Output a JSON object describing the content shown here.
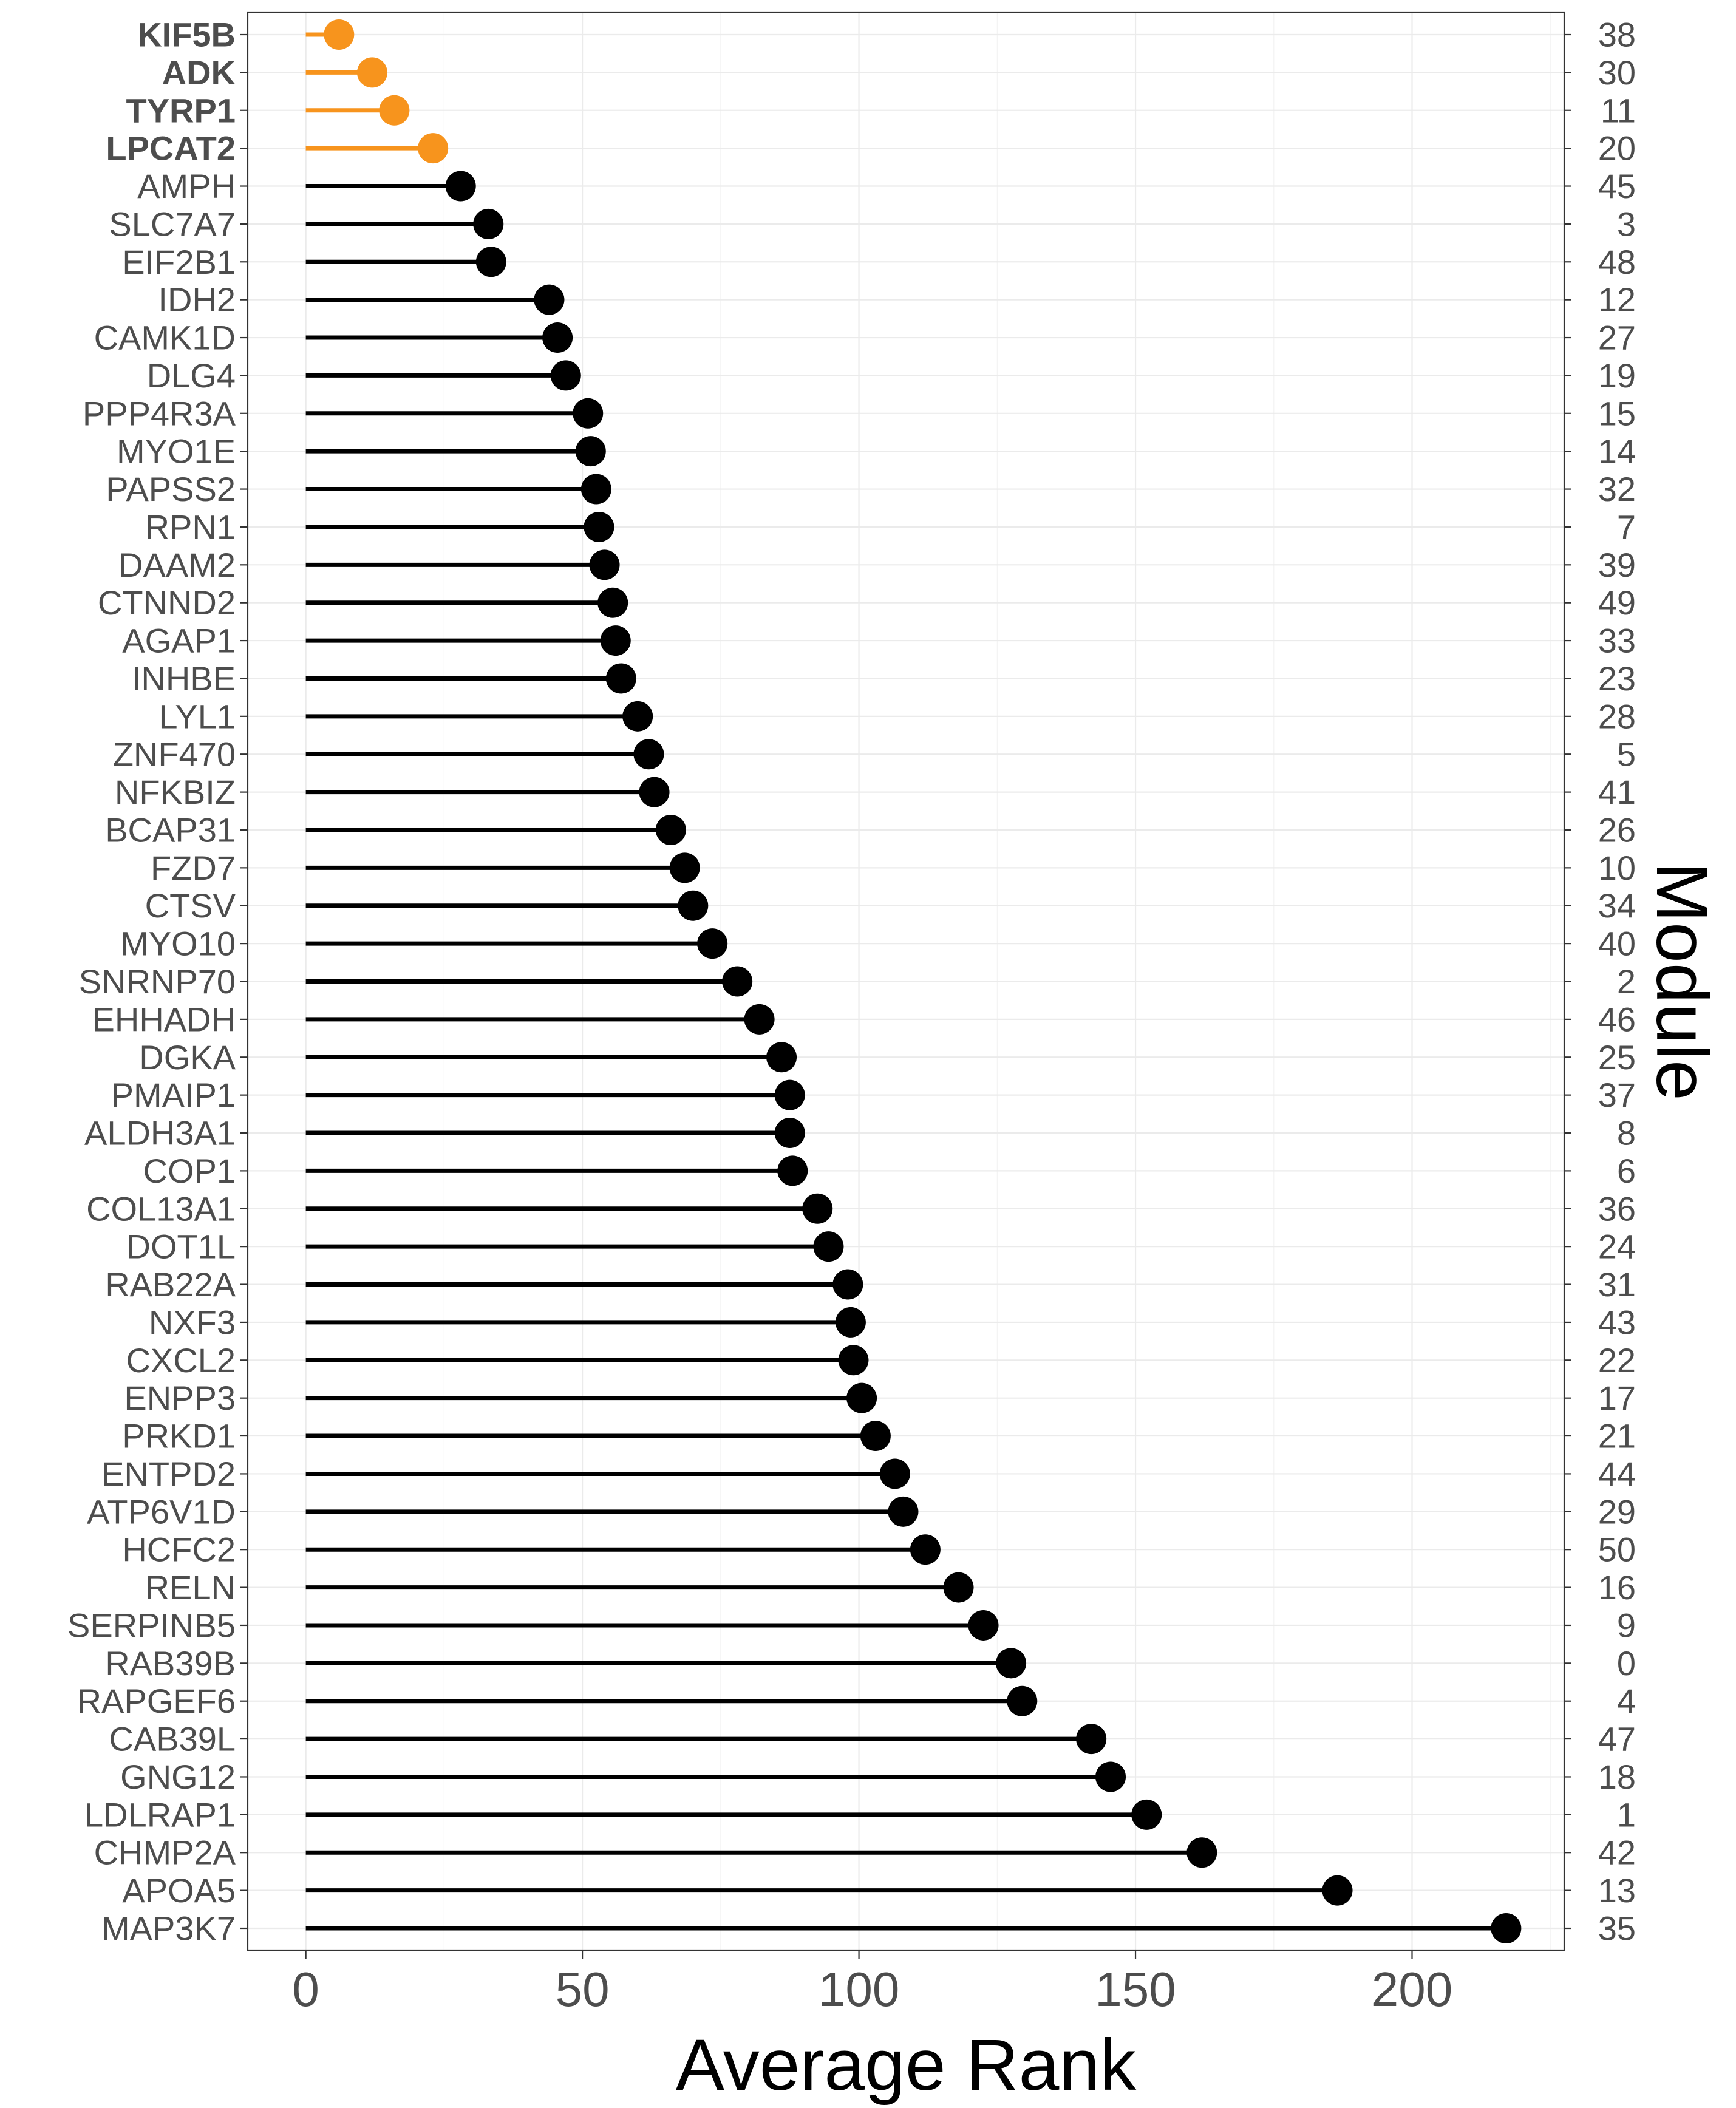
{
  "chart_data": {
    "type": "lollipop",
    "xlabel": "Average Rank",
    "ylabel_right": "Module",
    "xlim": [
      -10.5,
      227.5
    ],
    "xticks": [
      0,
      50,
      100,
      150,
      200
    ],
    "grid": true,
    "colors": {
      "highlight": "#f7941d",
      "default": "#000000"
    },
    "rows": [
      {
        "gene": "KIF5B",
        "module": "38",
        "rank": 6,
        "highlight": true
      },
      {
        "gene": "ADK",
        "module": "30",
        "rank": 12,
        "highlight": true
      },
      {
        "gene": "TYRP1",
        "module": "11",
        "rank": 16,
        "highlight": true
      },
      {
        "gene": "LPCAT2",
        "module": "20",
        "rank": 23,
        "highlight": true
      },
      {
        "gene": "AMPH",
        "module": "45",
        "rank": 28,
        "highlight": false
      },
      {
        "gene": "SLC7A7",
        "module": "3",
        "rank": 33,
        "highlight": false
      },
      {
        "gene": "EIF2B1",
        "module": "48",
        "rank": 33.5,
        "highlight": false
      },
      {
        "gene": "IDH2",
        "module": "12",
        "rank": 44,
        "highlight": false
      },
      {
        "gene": "CAMK1D",
        "module": "27",
        "rank": 45.5,
        "highlight": false
      },
      {
        "gene": "DLG4",
        "module": "19",
        "rank": 47,
        "highlight": false
      },
      {
        "gene": "PPP4R3A",
        "module": "15",
        "rank": 51,
        "highlight": false
      },
      {
        "gene": "MYO1E",
        "module": "14",
        "rank": 51.5,
        "highlight": false
      },
      {
        "gene": "PAPSS2",
        "module": "32",
        "rank": 52.5,
        "highlight": false
      },
      {
        "gene": "RPN1",
        "module": "7",
        "rank": 53,
        "highlight": false
      },
      {
        "gene": "DAAM2",
        "module": "39",
        "rank": 54,
        "highlight": false
      },
      {
        "gene": "CTNND2",
        "module": "49",
        "rank": 55.5,
        "highlight": false
      },
      {
        "gene": "AGAP1",
        "module": "33",
        "rank": 56,
        "highlight": false
      },
      {
        "gene": "INHBE",
        "module": "23",
        "rank": 57,
        "highlight": false
      },
      {
        "gene": "LYL1",
        "module": "28",
        "rank": 60,
        "highlight": false
      },
      {
        "gene": "ZNF470",
        "module": "5",
        "rank": 62,
        "highlight": false
      },
      {
        "gene": "NFKBIZ",
        "module": "41",
        "rank": 63,
        "highlight": false
      },
      {
        "gene": "BCAP31",
        "module": "26",
        "rank": 66,
        "highlight": false
      },
      {
        "gene": "FZD7",
        "module": "10",
        "rank": 68.5,
        "highlight": false
      },
      {
        "gene": "CTSV",
        "module": "34",
        "rank": 70,
        "highlight": false
      },
      {
        "gene": "MYO10",
        "module": "40",
        "rank": 73.5,
        "highlight": false
      },
      {
        "gene": "SNRNP70",
        "module": "2",
        "rank": 78,
        "highlight": false
      },
      {
        "gene": "EHHADH",
        "module": "46",
        "rank": 82,
        "highlight": false
      },
      {
        "gene": "DGKA",
        "module": "25",
        "rank": 86,
        "highlight": false
      },
      {
        "gene": "PMAIP1",
        "module": "37",
        "rank": 87.5,
        "highlight": false
      },
      {
        "gene": "ALDH3A1",
        "module": "8",
        "rank": 87.5,
        "highlight": false
      },
      {
        "gene": "COP1",
        "module": "6",
        "rank": 88,
        "highlight": false
      },
      {
        "gene": "COL13A1",
        "module": "36",
        "rank": 92.5,
        "highlight": false
      },
      {
        "gene": "DOT1L",
        "module": "24",
        "rank": 94.5,
        "highlight": false
      },
      {
        "gene": "RAB22A",
        "module": "31",
        "rank": 98,
        "highlight": false
      },
      {
        "gene": "NXF3",
        "module": "43",
        "rank": 98.5,
        "highlight": false
      },
      {
        "gene": "CXCL2",
        "module": "22",
        "rank": 99,
        "highlight": false
      },
      {
        "gene": "ENPP3",
        "module": "17",
        "rank": 100.5,
        "highlight": false
      },
      {
        "gene": "PRKD1",
        "module": "21",
        "rank": 103,
        "highlight": false
      },
      {
        "gene": "ENTPD2",
        "module": "44",
        "rank": 106.5,
        "highlight": false
      },
      {
        "gene": "ATP6V1D",
        "module": "29",
        "rank": 108,
        "highlight": false
      },
      {
        "gene": "HCFC2",
        "module": "50",
        "rank": 112,
        "highlight": false
      },
      {
        "gene": "RELN",
        "module": "16",
        "rank": 118,
        "highlight": false
      },
      {
        "gene": "SERPINB5",
        "module": "9",
        "rank": 122.5,
        "highlight": false
      },
      {
        "gene": "RAB39B",
        "module": "0",
        "rank": 127.5,
        "highlight": false
      },
      {
        "gene": "RAPGEF6",
        "module": "4",
        "rank": 129.5,
        "highlight": false
      },
      {
        "gene": "CAB39L",
        "module": "47",
        "rank": 142,
        "highlight": false
      },
      {
        "gene": "GNG12",
        "module": "18",
        "rank": 145.5,
        "highlight": false
      },
      {
        "gene": "LDLRAP1",
        "module": "1",
        "rank": 152,
        "highlight": false
      },
      {
        "gene": "CHMP2A",
        "module": "42",
        "rank": 162,
        "highlight": false
      },
      {
        "gene": "APOA5",
        "module": "13",
        "rank": 186.5,
        "highlight": false
      },
      {
        "gene": "MAP3K7",
        "module": "35",
        "rank": 217,
        "highlight": false
      }
    ]
  }
}
